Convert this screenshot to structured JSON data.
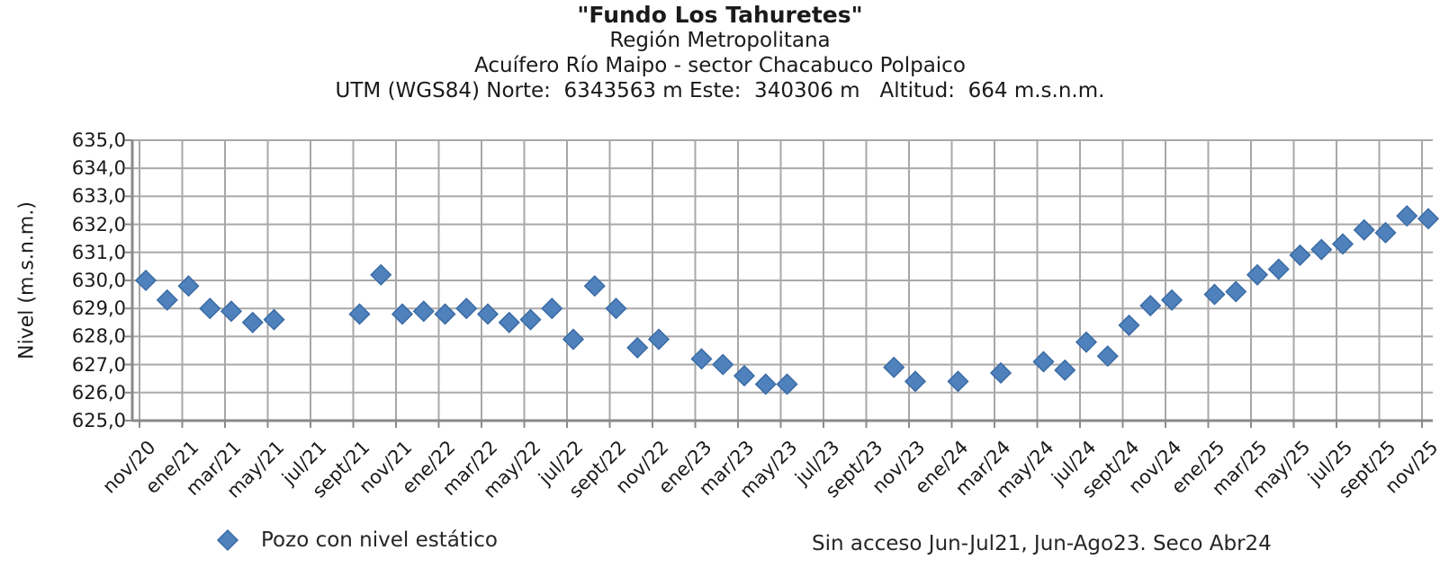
{
  "header": {
    "title_line1": "\"Fundo Los Tahuretes\"",
    "title_line2": "Región Metropolitana",
    "title_line3": "Acuífero Río Maipo - sector Chacabuco Polpaico",
    "title_line4": "UTM (WGS84) Norte:  6343563 m Este:  340306 m   Altitud:  664 m.s.n.m."
  },
  "chart_data": {
    "type": "scatter",
    "title": "\"Fundo Los Tahuretes\"",
    "subtitle": "Región Metropolitana - Acuífero Río Maipo - sector Chacabuco Polpaico",
    "xlabel": "",
    "ylabel": "Nivel (m.s.n.m.)",
    "ylim": [
      625.0,
      635.0
    ],
    "y_tick_step": 1.0,
    "grid": true,
    "legend_position": "bottom-left",
    "y_tick_labels": [
      "635,0",
      "634,0",
      "633,0",
      "632,0",
      "631,0",
      "630,0",
      "629,0",
      "628,0",
      "627,0",
      "626,0",
      "625,0"
    ],
    "x_tick_labels": [
      "nov/20",
      "ene/21",
      "mar/21",
      "may/21",
      "jul/21",
      "sept/21",
      "nov/21",
      "ene/22",
      "mar/22",
      "may/22",
      "jul/22",
      "sept/22",
      "nov/22",
      "ene/23",
      "mar/23",
      "may/23",
      "jul/23",
      "sept/23",
      "nov/23",
      "ene/24",
      "mar/24",
      "may/24",
      "jul/24",
      "sept/24",
      "nov/24",
      "ene/25",
      "mar/25",
      "may/25",
      "jul/25",
      "sept/25",
      "nov/25"
    ],
    "series": [
      {
        "name": "Pozo con nivel estático",
        "marker": "diamond",
        "color": "#4f81bd",
        "points": [
          {
            "month": "nov/20",
            "value": 630.0
          },
          {
            "month": "dic/20",
            "value": 629.3
          },
          {
            "month": "ene/21",
            "value": 629.8
          },
          {
            "month": "feb/21",
            "value": 629.0
          },
          {
            "month": "mar/21",
            "value": 628.9
          },
          {
            "month": "abr/21",
            "value": 628.5
          },
          {
            "month": "may/21",
            "value": 628.6
          },
          {
            "month": "sept/21",
            "value": 628.8
          },
          {
            "month": "oct/21",
            "value": 630.2
          },
          {
            "month": "nov/21",
            "value": 628.8
          },
          {
            "month": "dic/21",
            "value": 628.9
          },
          {
            "month": "ene/22",
            "value": 628.8
          },
          {
            "month": "feb/22",
            "value": 629.0
          },
          {
            "month": "mar/22",
            "value": 628.8
          },
          {
            "month": "abr/22",
            "value": 628.5
          },
          {
            "month": "may/22",
            "value": 628.6
          },
          {
            "month": "jun/22",
            "value": 629.0
          },
          {
            "month": "jul/22",
            "value": 627.9
          },
          {
            "month": "ago/22",
            "value": 629.8
          },
          {
            "month": "sept/22",
            "value": 629.0
          },
          {
            "month": "oct/22",
            "value": 627.6
          },
          {
            "month": "nov/22",
            "value": 627.9
          },
          {
            "month": "ene/23",
            "value": 627.2
          },
          {
            "month": "feb/23",
            "value": 627.0
          },
          {
            "month": "mar/23",
            "value": 626.6
          },
          {
            "month": "abr/23",
            "value": 626.3
          },
          {
            "month": "may/23",
            "value": 626.3
          },
          {
            "month": "oct/23",
            "value": 626.9
          },
          {
            "month": "nov/23",
            "value": 626.4
          },
          {
            "month": "ene/24",
            "value": 626.4
          },
          {
            "month": "mar/24",
            "value": 626.7
          },
          {
            "month": "may/24",
            "value": 627.1
          },
          {
            "month": "jun/24",
            "value": 626.8
          },
          {
            "month": "jul/24",
            "value": 627.8
          },
          {
            "month": "ago/24",
            "value": 627.3
          },
          {
            "month": "sept/24",
            "value": 628.4
          },
          {
            "month": "oct/24",
            "value": 629.1
          },
          {
            "month": "nov/24",
            "value": 629.3
          },
          {
            "month": "ene/25",
            "value": 629.5
          },
          {
            "month": "feb/25",
            "value": 629.6
          },
          {
            "month": "mar/25",
            "value": 630.2
          },
          {
            "month": "abr/25",
            "value": 630.4
          },
          {
            "month": "may/25",
            "value": 630.9
          },
          {
            "month": "jun/25",
            "value": 631.1
          },
          {
            "month": "jul/25",
            "value": 631.3
          },
          {
            "month": "ago/25",
            "value": 631.8
          },
          {
            "month": "sept/25",
            "value": 631.7
          },
          {
            "month": "oct/25",
            "value": 632.3
          },
          {
            "month": "nov/25",
            "value": 632.2
          }
        ]
      }
    ],
    "missing_data_note": "Sin acceso Jun-Jul21, Jun-Ago23. Seco Abr24"
  },
  "legend": {
    "label": "Pozo con nivel estático"
  },
  "annotation": {
    "text": "Sin acceso Jun-Jul21, Jun-Ago23. Seco Abr24"
  },
  "colors": {
    "marker_fill": "#4f81bd",
    "marker_edge": "#3a6ba5",
    "gridline": "#a8a8a8",
    "axis": "#8a8a8a",
    "text": "#1a1a1a"
  }
}
